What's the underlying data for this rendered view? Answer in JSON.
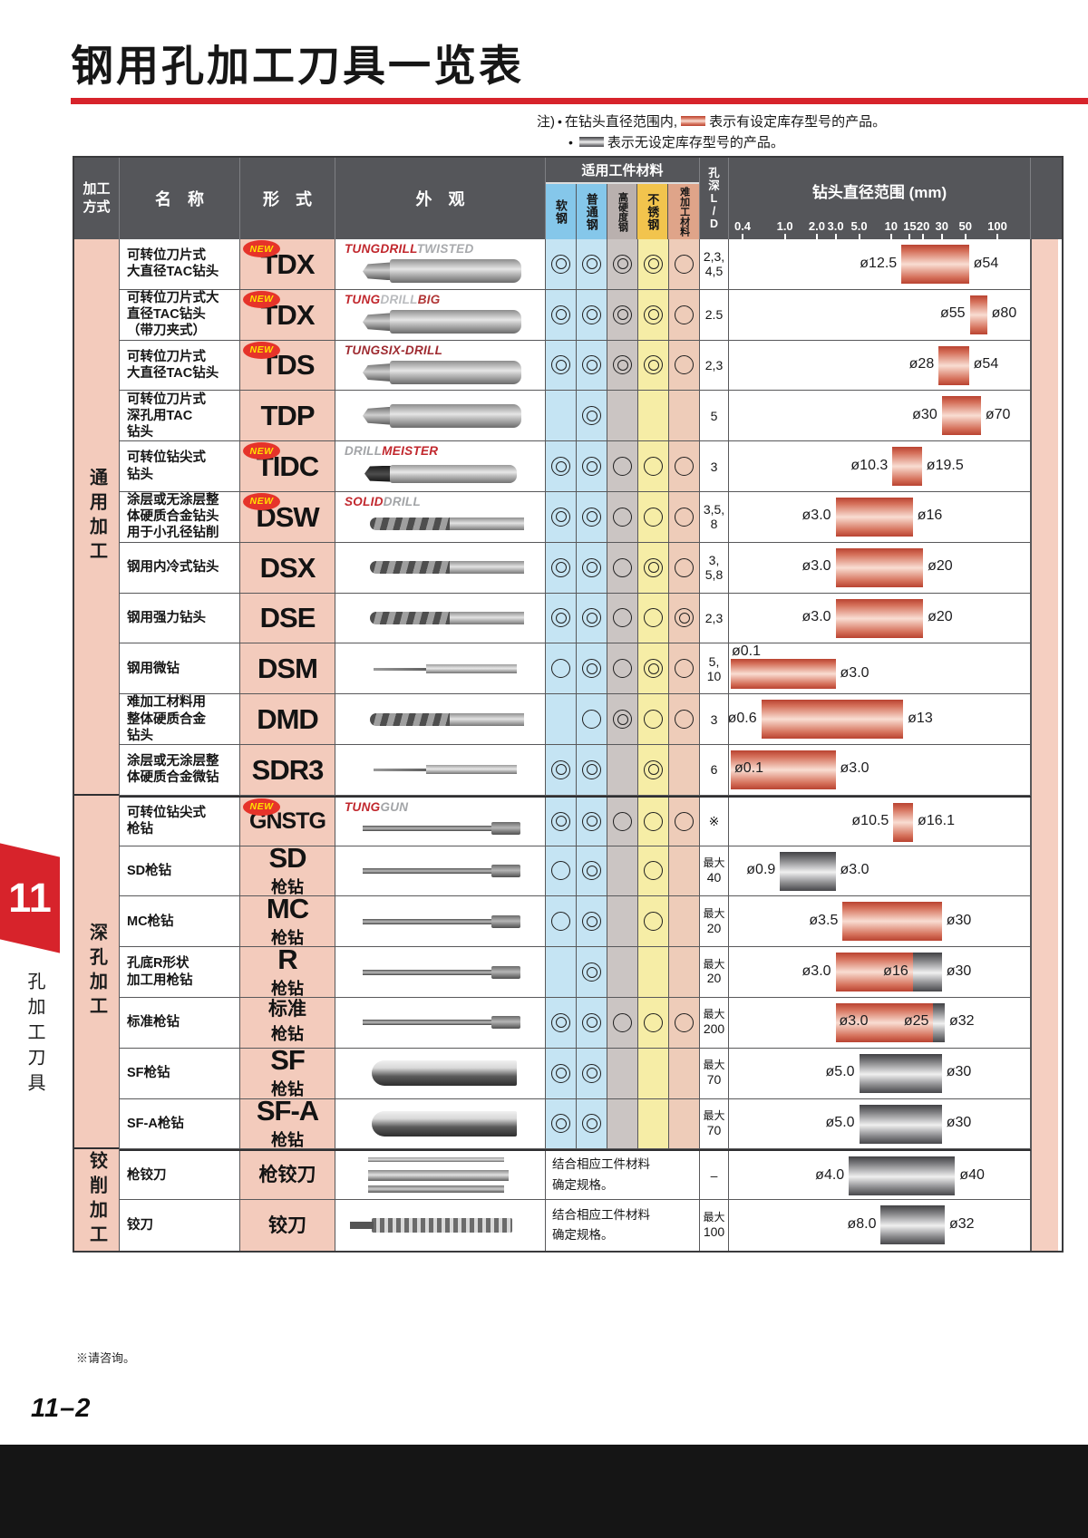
{
  "page": {
    "title": "钢用孔加工刀具一览表",
    "note": {
      "prefix": "注)",
      "bullet": "•",
      "line1_pre": "在钻头直径范围内, ",
      "line1_post": "表示有设定库存型号的产品。",
      "line2_post": "表示无设定库存型号的产品。"
    },
    "sidebar": {
      "tab": "11",
      "label": "孔加工刀具"
    },
    "footnote": "※请咨询。",
    "page_number": "11–2"
  },
  "table": {
    "new_badge": "NEW",
    "headers": {
      "method": "加工\n方式",
      "name": "名　称",
      "form": "形　式",
      "appearance": "外　观",
      "materials_group": "适用工件材料",
      "materials": [
        "软钢",
        "普通钢",
        "高硬度钢",
        "不锈钢",
        "难加工材料"
      ],
      "hole_depth": "孔\n深\nL\n/\nD",
      "diameter_title": "钻头直径范围 (mm)",
      "scale": [
        "0.4",
        "1.0",
        "2.0",
        "3.0",
        "5.0",
        "10",
        "15",
        "20",
        "30",
        "50",
        "100"
      ],
      "scale_values": [
        0.4,
        1,
        2,
        3,
        5,
        10,
        15,
        20,
        30,
        50,
        100
      ]
    },
    "groups": [
      {
        "label": "通用加工",
        "rows": 11
      },
      {
        "label": "深孔加工",
        "rows": 7
      },
      {
        "label": "铰削加工",
        "rows": 2
      }
    ],
    "rows": [
      {
        "name_lines": [
          "可转位刀片式",
          "大直径TAC钻头"
        ],
        "is_new": true,
        "form_main": "TDX",
        "brand": [
          {
            "t": "TUNGDRILL",
            "c": "#c1272d"
          },
          {
            "t": "TWISTED",
            "c": "#a8aaad"
          }
        ],
        "photo": "tac",
        "materials": [
          "double",
          "double",
          "double",
          "double",
          "single"
        ],
        "ld_lines": [
          "2,3,",
          "4,5"
        ],
        "bar": {
          "segments": [
            {
              "from": 12.5,
              "to": 54,
              "color": "red"
            }
          ],
          "labels": [
            {
              "text": "ø12.5",
              "d": 12.5,
              "pos": "left"
            },
            {
              "text": "ø54",
              "d": 54,
              "pos": "right"
            }
          ]
        }
      },
      {
        "name_lines": [
          "可转位刀片式大",
          "直径TAC钻头",
          "（带刀夹式）"
        ],
        "is_new": true,
        "form_main": "TDX",
        "brand": [
          {
            "t": "TUNG",
            "c": "#c1272d"
          },
          {
            "t": "DRILL",
            "c": "#b9bbbe"
          },
          {
            "t": "BIG",
            "c": "#b03535"
          }
        ],
        "photo": "tac",
        "materials": [
          "double",
          "double",
          "double",
          "double",
          "single"
        ],
        "ld_lines": [
          "2.5"
        ],
        "bar": {
          "segments": [
            {
              "from": 55,
              "to": 80,
              "color": "red"
            }
          ],
          "labels": [
            {
              "text": "ø55",
              "d": 55,
              "pos": "left"
            },
            {
              "text": "ø80",
              "d": 80,
              "pos": "right"
            }
          ]
        }
      },
      {
        "name_lines": [
          "可转位刀片式",
          "大直径TAC钻头"
        ],
        "is_new": true,
        "form_main": "TDS",
        "brand": [
          {
            "t": "TUNGSIX-DRILL",
            "c": "#9e2a30"
          }
        ],
        "photo": "tac",
        "materials": [
          "double",
          "double",
          "double",
          "double",
          "single"
        ],
        "ld_lines": [
          "2,3"
        ],
        "bar": {
          "segments": [
            {
              "from": 28,
              "to": 54,
              "color": "red"
            }
          ],
          "labels": [
            {
              "text": "ø28",
              "d": 28,
              "pos": "left"
            },
            {
              "text": "ø54",
              "d": 54,
              "pos": "right"
            }
          ]
        }
      },
      {
        "name_lines": [
          "可转位刀片式",
          "深孔用TAC",
          "钻头"
        ],
        "is_new": false,
        "form_main": "TDP",
        "photo": "tac",
        "materials": [
          "",
          "double",
          "",
          "",
          ""
        ],
        "ld_lines": [
          "5"
        ],
        "bar": {
          "segments": [
            {
              "from": 30,
              "to": 70,
              "color": "red"
            }
          ],
          "labels": [
            {
              "text": "ø30",
              "d": 30,
              "pos": "left"
            },
            {
              "text": "ø70",
              "d": 70,
              "pos": "right"
            }
          ]
        }
      },
      {
        "name_lines": [
          "可转位钻尖式",
          "钻头"
        ],
        "is_new": true,
        "form_main": "TIDC",
        "brand": [
          {
            "t": "DRILL",
            "c": "#a2a4a7"
          },
          {
            "t": "MEISTER",
            "c": "#c1272d"
          }
        ],
        "photo": "mod",
        "materials": [
          "double",
          "double",
          "single",
          "single",
          "single"
        ],
        "ld_lines": [
          "3"
        ],
        "bar": {
          "segments": [
            {
              "from": 10.3,
              "to": 19.5,
              "color": "red"
            }
          ],
          "labels": [
            {
              "text": "ø10.3",
              "d": 10.3,
              "pos": "left"
            },
            {
              "text": "ø19.5",
              "d": 19.5,
              "pos": "right"
            }
          ]
        }
      },
      {
        "name_lines": [
          "涂层或无涂层整",
          "体硬质合金钻头",
          "用于小孔径钻削"
        ],
        "is_new": true,
        "form_main": "DSW",
        "brand": [
          {
            "t": "SOLID",
            "c": "#c1272d"
          },
          {
            "t": "DRILL",
            "c": "#a2a4a7"
          }
        ],
        "photo": "solid",
        "materials": [
          "double",
          "double",
          "single",
          "single",
          "single"
        ],
        "ld_lines": [
          "3,5,",
          "8"
        ],
        "bar": {
          "segments": [
            {
              "from": 3,
              "to": 16,
              "color": "red"
            }
          ],
          "labels": [
            {
              "text": "ø3.0",
              "d": 3,
              "pos": "left"
            },
            {
              "text": "ø16",
              "d": 16,
              "pos": "right"
            }
          ]
        }
      },
      {
        "name_lines": [
          "钢用内冷式钻头"
        ],
        "is_new": false,
        "form_main": "DSX",
        "photo": "solid",
        "materials": [
          "double",
          "double",
          "single",
          "double",
          "single"
        ],
        "ld_lines": [
          "3,",
          "5,8"
        ],
        "bar": {
          "segments": [
            {
              "from": 3,
              "to": 20,
              "color": "red"
            }
          ],
          "labels": [
            {
              "text": "ø3.0",
              "d": 3,
              "pos": "left"
            },
            {
              "text": "ø20",
              "d": 20,
              "pos": "right"
            }
          ]
        }
      },
      {
        "name_lines": [
          "钢用强力钻头"
        ],
        "is_new": false,
        "form_main": "DSE",
        "photo": "solid",
        "materials": [
          "double",
          "double",
          "single",
          "single",
          "double"
        ],
        "ld_lines": [
          "2,3"
        ],
        "bar": {
          "segments": [
            {
              "from": 3,
              "to": 20,
              "color": "red"
            }
          ],
          "labels": [
            {
              "text": "ø3.0",
              "d": 3,
              "pos": "left"
            },
            {
              "text": "ø20",
              "d": 20,
              "pos": "right"
            }
          ]
        }
      },
      {
        "name_lines": [
          "钢用微钻"
        ],
        "is_new": false,
        "form_main": "DSM",
        "photo": "micro",
        "materials": [
          "single",
          "double",
          "single",
          "double",
          "single"
        ],
        "ld_lines": [
          "5,",
          "10"
        ],
        "bar": {
          "segments": [
            {
              "from": 0.1,
              "to": 3,
              "color": "red"
            }
          ],
          "labels": [
            {
              "text": "ø0.1",
              "d": 0.1,
              "pos": "above"
            },
            {
              "text": "ø3.0",
              "d": 3,
              "pos": "right"
            }
          ]
        }
      },
      {
        "name_lines": [
          "难加工材料用",
          "整体硬质合金",
          "钻头"
        ],
        "is_new": false,
        "form_main": "DMD",
        "photo": "solid",
        "materials": [
          "",
          "single",
          "double",
          "single",
          "single"
        ],
        "ld_lines": [
          "3"
        ],
        "bar": {
          "segments": [
            {
              "from": 0.6,
              "to": 13,
              "color": "red"
            }
          ],
          "labels": [
            {
              "text": "ø0.6",
              "d": 0.6,
              "pos": "left"
            },
            {
              "text": "ø13",
              "d": 13,
              "pos": "right"
            }
          ]
        }
      },
      {
        "name_lines": [
          "涂层或无涂层整",
          "体硬质合金微钻"
        ],
        "is_new": false,
        "form_main": "SDR3",
        "photo": "micro",
        "materials": [
          "double",
          "double",
          "",
          "double",
          ""
        ],
        "ld_lines": [
          "6"
        ],
        "bar": {
          "segments": [
            {
              "from": 0.1,
              "to": 3,
              "color": "red"
            }
          ],
          "labels": [
            {
              "text": "ø0.1",
              "d": 0.1,
              "pos": "on-right"
            },
            {
              "text": "ø3.0",
              "d": 3,
              "pos": "right"
            }
          ]
        }
      },
      {
        "name_lines": [
          "可转位钻尖式",
          "枪钻"
        ],
        "is_new": true,
        "form_main": "GNSTG",
        "brand": [
          {
            "t": "TUNG",
            "c": "#c1272d"
          },
          {
            "t": "GUN",
            "c": "#a2a4a7"
          }
        ],
        "photo": "gun",
        "materials": [
          "double",
          "double",
          "single",
          "single",
          "single"
        ],
        "ld_lines": [
          "※"
        ],
        "bar": {
          "segments": [
            {
              "from": 10.5,
              "to": 16.1,
              "color": "red"
            }
          ],
          "labels": [
            {
              "text": "ø10.5",
              "d": 10.5,
              "pos": "left"
            },
            {
              "text": "ø16.1",
              "d": 16.1,
              "pos": "right"
            }
          ]
        }
      },
      {
        "name_lines": [
          "SD枪钻"
        ],
        "is_new": false,
        "form_main": "SD",
        "form_sub": "枪钻",
        "photo": "gun",
        "materials": [
          "single",
          "double",
          "",
          "single",
          ""
        ],
        "ld_lines": [
          "最大",
          "40"
        ],
        "bar": {
          "segments": [
            {
              "from": 0.9,
              "to": 3,
              "color": "gray"
            }
          ],
          "labels": [
            {
              "text": "ø0.9",
              "d": 0.9,
              "pos": "left"
            },
            {
              "text": "ø3.0",
              "d": 3,
              "pos": "right"
            }
          ]
        }
      },
      {
        "name_lines": [
          "MC枪钻"
        ],
        "is_new": false,
        "form_main": "MC",
        "form_sub": "枪钻",
        "photo": "gun",
        "materials": [
          "single",
          "double",
          "",
          "single",
          ""
        ],
        "ld_lines": [
          "最大",
          "20"
        ],
        "bar": {
          "segments": [
            {
              "from": 3.5,
              "to": 30,
              "color": "red"
            }
          ],
          "labels": [
            {
              "text": "ø3.5",
              "d": 3.5,
              "pos": "left"
            },
            {
              "text": "ø30",
              "d": 30,
              "pos": "right"
            }
          ]
        }
      },
      {
        "name_lines": [
          "孔底R形状",
          "加工用枪钻"
        ],
        "is_new": false,
        "form_main": "R",
        "form_sub": "枪钻",
        "photo": "gun",
        "materials": [
          "",
          "double",
          "",
          "",
          ""
        ],
        "ld_lines": [
          "最大",
          "20"
        ],
        "bar": {
          "segments": [
            {
              "from": 3,
              "to": 16,
              "color": "red"
            },
            {
              "from": 16,
              "to": 30,
              "color": "gray"
            }
          ],
          "labels": [
            {
              "text": "ø3.0",
              "d": 3,
              "pos": "left"
            },
            {
              "text": "ø16",
              "d": 16,
              "pos": "on-left"
            },
            {
              "text": "ø30",
              "d": 30,
              "pos": "right"
            }
          ]
        }
      },
      {
        "name_lines": [
          "标准枪钻"
        ],
        "is_new": false,
        "form_main": "标准",
        "form_sub": "枪钻",
        "photo": "gun",
        "materials": [
          "double",
          "double",
          "single",
          "single",
          "single"
        ],
        "ld_lines": [
          "最大",
          "200"
        ],
        "bar": {
          "segments": [
            {
              "from": 3,
              "to": 25,
              "color": "red"
            },
            {
              "from": 25,
              "to": 32,
              "color": "gray"
            }
          ],
          "labels": [
            {
              "text": "ø3.0",
              "d": 3,
              "pos": "on-right"
            },
            {
              "text": "ø25",
              "d": 25,
              "pos": "on-left"
            },
            {
              "text": "ø32",
              "d": 32,
              "pos": "right"
            }
          ]
        }
      },
      {
        "name_lines": [
          "SF枪钻"
        ],
        "is_new": false,
        "form_main": "SF",
        "form_sub": "枪钻",
        "photo": "sf",
        "materials": [
          "double",
          "double",
          "",
          "",
          ""
        ],
        "ld_lines": [
          "最大",
          "70"
        ],
        "bar": {
          "segments": [
            {
              "from": 5,
              "to": 30,
              "color": "gray"
            }
          ],
          "labels": [
            {
              "text": "ø5.0",
              "d": 5,
              "pos": "left"
            },
            {
              "text": "ø30",
              "d": 30,
              "pos": "right"
            }
          ]
        }
      },
      {
        "name_lines": [
          "SF-A枪钻"
        ],
        "is_new": false,
        "form_main": "SF-A",
        "form_sub": "枪钻",
        "photo": "sf",
        "materials": [
          "double",
          "double",
          "",
          "",
          ""
        ],
        "ld_lines": [
          "最大",
          "70"
        ],
        "bar": {
          "segments": [
            {
              "from": 5,
              "to": 30,
              "color": "gray"
            }
          ],
          "labels": [
            {
              "text": "ø5.0",
              "d": 5,
              "pos": "left"
            },
            {
              "text": "ø30",
              "d": 30,
              "pos": "right"
            }
          ]
        }
      },
      {
        "name_lines": [
          "枪铰刀"
        ],
        "is_new": false,
        "form_main": "枪铰刀",
        "photo": "reamer-set",
        "materials_note_lines": [
          "结合相应工件材料",
          "确定规格。"
        ],
        "ld_lines": [
          "–"
        ],
        "bar": {
          "segments": [
            {
              "from": 4,
              "to": 40,
              "color": "gray"
            }
          ],
          "labels": [
            {
              "text": "ø4.0",
              "d": 4,
              "pos": "left"
            },
            {
              "text": "ø40",
              "d": 40,
              "pos": "right"
            }
          ]
        }
      },
      {
        "name_lines": [
          "铰刀"
        ],
        "is_new": false,
        "form_main": "铰刀",
        "photo": "reamer",
        "materials_note_lines": [
          "结合相应工件材料",
          "确定规格。"
        ],
        "ld_lines": [
          "最大",
          "100"
        ],
        "bar": {
          "segments": [
            {
              "from": 8,
              "to": 32,
              "color": "gray"
            }
          ],
          "labels": [
            {
              "text": "ø8.0",
              "d": 8,
              "pos": "left"
            },
            {
              "text": "ø32",
              "d": 32,
              "pos": "right"
            }
          ]
        }
      }
    ]
  },
  "colors": {
    "accent_red": "#d7232b",
    "header_bg": "#55565a",
    "pink_cell": "#f3cbbc",
    "strip_pink": "#f5cfc1",
    "material_header": [
      "#85c7ea",
      "#85c7ea",
      "#b9b0ae",
      "#f2c44d",
      "#dfa489"
    ],
    "material_body": [
      "#c5e4f3",
      "#c5e4f3",
      "#cbc5c3",
      "#f6eda6",
      "#eeccb9"
    ],
    "bar_red": "#c84b35",
    "bar_gray": "#58585a",
    "new_badge_bg": "#e6332a",
    "new_badge_text": "#ffe100"
  }
}
